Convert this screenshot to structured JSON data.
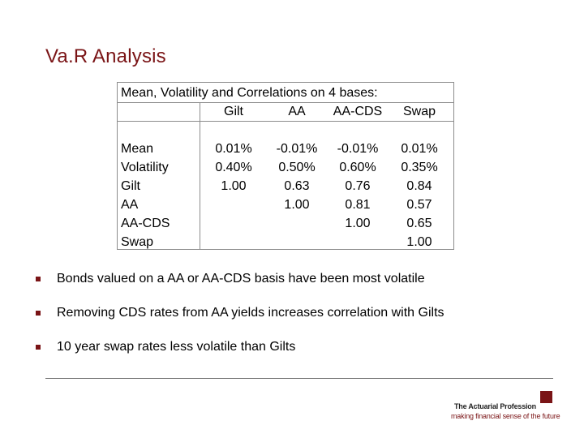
{
  "title": "Va.R Analysis",
  "table": {
    "caption": "Mean, Volatility and Correlations on 4 bases:",
    "columns": [
      "Gilt",
      "AA",
      "AA-CDS",
      "Swap"
    ],
    "rows": [
      {
        "label": "Mean",
        "values": [
          "0.01%",
          "-0.01%",
          "-0.01%",
          "0.01%"
        ]
      },
      {
        "label": "Volatility",
        "values": [
          "0.40%",
          "0.50%",
          "0.60%",
          "0.35%"
        ]
      },
      {
        "label": "Gilt",
        "values": [
          "1.00",
          "0.63",
          "0.76",
          "0.84"
        ]
      },
      {
        "label": "AA",
        "values": [
          "",
          "1.00",
          "0.81",
          "0.57"
        ]
      },
      {
        "label": "AA-CDS",
        "values": [
          "",
          "",
          "1.00",
          "0.65"
        ]
      },
      {
        "label": "Swap",
        "values": [
          "",
          "",
          "",
          "1.00"
        ]
      }
    ]
  },
  "bullets": [
    "Bonds valued on a AA or AA-CDS basis have been most volatile",
    "Removing CDS rates from AA yields increases correlation with Gilts",
    "10 year swap rates less volatile than Gilts"
  ],
  "logo": {
    "name": "The Actuarial Profession",
    "tagline": "making financial sense of the future"
  },
  "colors": {
    "accent": "#7a1416",
    "rule": "#8c8c8c"
  }
}
